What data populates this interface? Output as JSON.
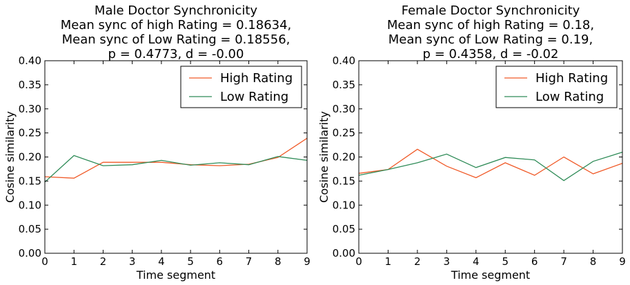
{
  "chart_data": [
    {
      "type": "line",
      "title_lines": [
        "Male Doctor Synchronicity",
        "Mean sync of high Rating = 0.18634,",
        "Mean sync of Low Rating = 0.18556,",
        "p = 0.4773, d = -0.00"
      ],
      "xlabel": "Time segment",
      "ylabel": "Cosine similarity",
      "xlim": [
        0,
        9
      ],
      "ylim": [
        0,
        0.4
      ],
      "xticks": [
        0,
        1,
        2,
        3,
        4,
        5,
        6,
        7,
        8,
        9
      ],
      "yticks": [
        0.0,
        0.05,
        0.1,
        0.15,
        0.2,
        0.25,
        0.3,
        0.35,
        0.4
      ],
      "grid": false,
      "legend_position": "top-right",
      "x": [
        0,
        1,
        2,
        3,
        4,
        5,
        6,
        7,
        8,
        9
      ],
      "series": [
        {
          "name": "High Rating",
          "color": "#f05a28",
          "values": [
            0.159,
            0.156,
            0.189,
            0.189,
            0.189,
            0.184,
            0.182,
            0.185,
            0.199,
            0.239
          ]
        },
        {
          "name": "Low Rating",
          "color": "#2e8b57",
          "values": [
            0.148,
            0.203,
            0.182,
            0.184,
            0.193,
            0.183,
            0.188,
            0.184,
            0.201,
            0.193
          ]
        }
      ]
    },
    {
      "type": "line",
      "title_lines": [
        "Female Doctor Synchronicity",
        "Mean sync of high Rating = 0.18,",
        "Mean sync of Low Rating = 0.19,",
        "p = 0.4358, d = -0.02"
      ],
      "xlabel": "Time segment",
      "ylabel": "Cosine similarity",
      "xlim": [
        0,
        9
      ],
      "ylim": [
        0,
        0.4
      ],
      "xticks": [
        0,
        1,
        2,
        3,
        4,
        5,
        6,
        7,
        8,
        9
      ],
      "yticks": [
        0.0,
        0.05,
        0.1,
        0.15,
        0.2,
        0.25,
        0.3,
        0.35,
        0.4
      ],
      "grid": false,
      "legend_position": "top-right",
      "x": [
        0,
        1,
        2,
        3,
        4,
        5,
        6,
        7,
        8,
        9
      ],
      "series": [
        {
          "name": "High Rating",
          "color": "#f05a28",
          "values": [
            0.166,
            0.174,
            0.216,
            0.181,
            0.157,
            0.188,
            0.162,
            0.2,
            0.165,
            0.187
          ]
        },
        {
          "name": "Low Rating",
          "color": "#2e8b57",
          "values": [
            0.162,
            0.174,
            0.188,
            0.206,
            0.178,
            0.199,
            0.194,
            0.151,
            0.191,
            0.21
          ]
        }
      ]
    }
  ]
}
